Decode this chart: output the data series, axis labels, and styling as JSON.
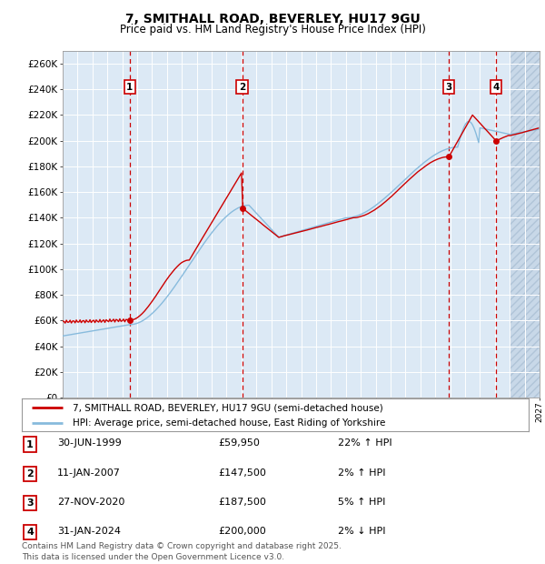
{
  "title": "7, SMITHALL ROAD, BEVERLEY, HU17 9GU",
  "subtitle": "Price paid vs. HM Land Registry's House Price Index (HPI)",
  "ylim": [
    0,
    270000
  ],
  "yticks": [
    0,
    20000,
    40000,
    60000,
    80000,
    100000,
    120000,
    140000,
    160000,
    180000,
    200000,
    220000,
    240000,
    260000
  ],
  "background_color": "#dce9f5",
  "grid_color": "#ffffff",
  "line1_color": "#cc0000",
  "line2_color": "#88bbdd",
  "purchases": [
    {
      "date_num": 1999.5,
      "price": 59950,
      "label": "1"
    },
    {
      "date_num": 2007.04,
      "price": 147500,
      "label": "2"
    },
    {
      "date_num": 2020.92,
      "price": 187500,
      "label": "3"
    },
    {
      "date_num": 2024.08,
      "price": 200000,
      "label": "4"
    }
  ],
  "legend_line1": "7, SMITHALL ROAD, BEVERLEY, HU17 9GU (semi-detached house)",
  "legend_line2": "HPI: Average price, semi-detached house, East Riding of Yorkshire",
  "table_rows": [
    [
      "1",
      "30-JUN-1999",
      "£59,950",
      "22% ↑ HPI"
    ],
    [
      "2",
      "11-JAN-2007",
      "£147,500",
      "2% ↑ HPI"
    ],
    [
      "3",
      "27-NOV-2020",
      "£187,500",
      "5% ↑ HPI"
    ],
    [
      "4",
      "31-JAN-2024",
      "£200,000",
      "2% ↓ HPI"
    ]
  ],
  "footer": "Contains HM Land Registry data © Crown copyright and database right 2025.\nThis data is licensed under the Open Government Licence v3.0.",
  "xmin": 1995,
  "xmax": 2027,
  "hatch_start": 2025
}
